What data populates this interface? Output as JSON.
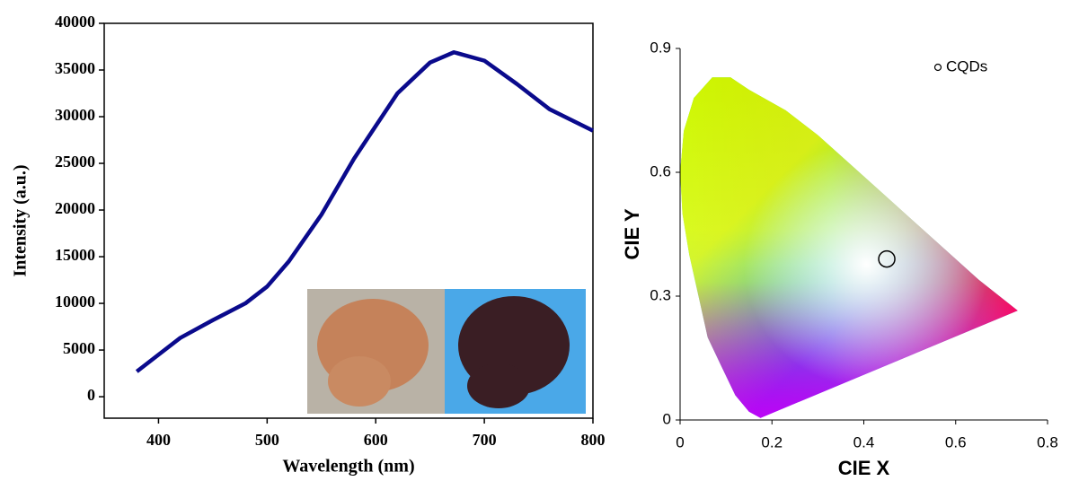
{
  "chart_data": [
    {
      "type": "line",
      "x_label": "Wavelength (nm)",
      "y_label": "Intensity (a.u.)",
      "x": [
        380,
        400,
        420,
        450,
        480,
        500,
        520,
        550,
        580,
        600,
        620,
        650,
        672,
        700,
        730,
        760,
        800
      ],
      "series": [
        {
          "color": "#0a0a8c",
          "values": [
            2700,
            4500,
            6300,
            8200,
            10000,
            11800,
            14500,
            19500,
            25500,
            29000,
            32500,
            35800,
            36900,
            36000,
            33500,
            30800,
            28500
          ]
        }
      ],
      "xlim": [
        350,
        800
      ],
      "xticks": [
        400,
        500,
        600,
        700,
        800
      ],
      "ylim": [
        -2300,
        40000
      ],
      "yticks": [
        0,
        5000,
        10000,
        15000,
        20000,
        25000,
        30000,
        35000,
        40000
      ]
    },
    {
      "type": "scatter",
      "x_label": "CIE X",
      "y_label": "CIE Y",
      "series": [
        {
          "name": "CQDs",
          "color": "#000000",
          "x": [
            0.45
          ],
          "values": [
            0.39
          ]
        }
      ],
      "xlim": [
        0,
        0.8
      ],
      "xticks": [
        0,
        0.2,
        0.4,
        0.6,
        0.8
      ],
      "ylim": [
        0,
        0.9
      ],
      "yticks": [
        0,
        0.3,
        0.6,
        0.9
      ],
      "legend": "top right"
    }
  ]
}
